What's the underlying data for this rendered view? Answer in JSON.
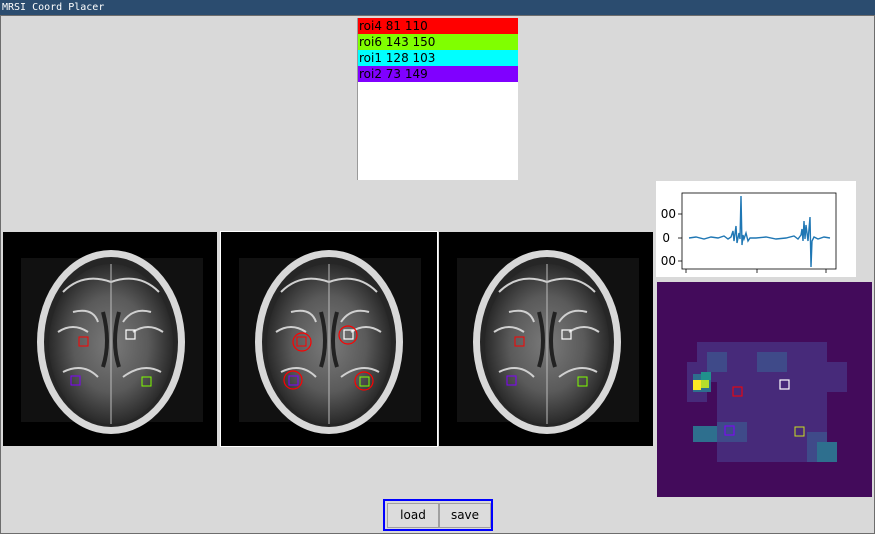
{
  "window": {
    "title": "MRSI Coord Placer"
  },
  "roi_list": [
    {
      "label": "roi4 81 110",
      "color": "#ff0000"
    },
    {
      "label": "roi6 143 150",
      "color": "#80ff00"
    },
    {
      "label": "roi1 128 103",
      "color": "#00ffff"
    },
    {
      "label": "roi2 73 149",
      "color": "#8000ff"
    }
  ],
  "spectrum_plot": {
    "y_tick_labels": [
      "00",
      "0",
      "00"
    ],
    "line_color": "#1f77b4"
  },
  "buttons": {
    "load": "load",
    "save": "save"
  }
}
